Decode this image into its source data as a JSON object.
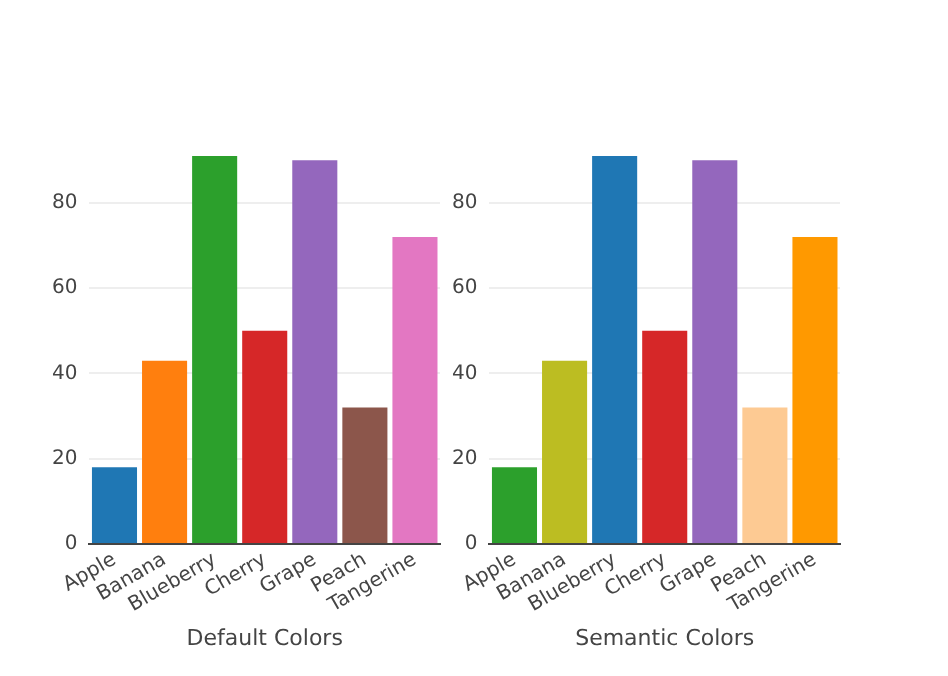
{
  "chart_data": [
    {
      "type": "bar",
      "xlabel": "Default Colors",
      "categories": [
        "Apple",
        "Banana",
        "Blueberry",
        "Cherry",
        "Grape",
        "Peach",
        "Tangerine"
      ],
      "values": [
        18,
        43,
        91,
        50,
        90,
        32,
        72
      ],
      "colors": [
        "#1f77b4",
        "#ff7f0e",
        "#2ca02c",
        "#d62728",
        "#9467bd",
        "#8c564b",
        "#e377c2"
      ],
      "ylim": [
        0,
        91
      ],
      "yticks": [
        0,
        20,
        40,
        60,
        80
      ],
      "grid": "y",
      "legend": false
    },
    {
      "type": "bar",
      "xlabel": "Semantic Colors",
      "categories": [
        "Apple",
        "Banana",
        "Blueberry",
        "Cherry",
        "Grape",
        "Peach",
        "Tangerine"
      ],
      "values": [
        18,
        43,
        91,
        50,
        90,
        32,
        72
      ],
      "colors": [
        "#2ca02c",
        "#bcbd22",
        "#1f77b4",
        "#d62728",
        "#9467bd",
        "#fdca93",
        "#ff9900"
      ],
      "ylim": [
        0,
        91
      ],
      "yticks": [
        0,
        20,
        40,
        60,
        80
      ],
      "grid": "y",
      "legend": false
    }
  ]
}
